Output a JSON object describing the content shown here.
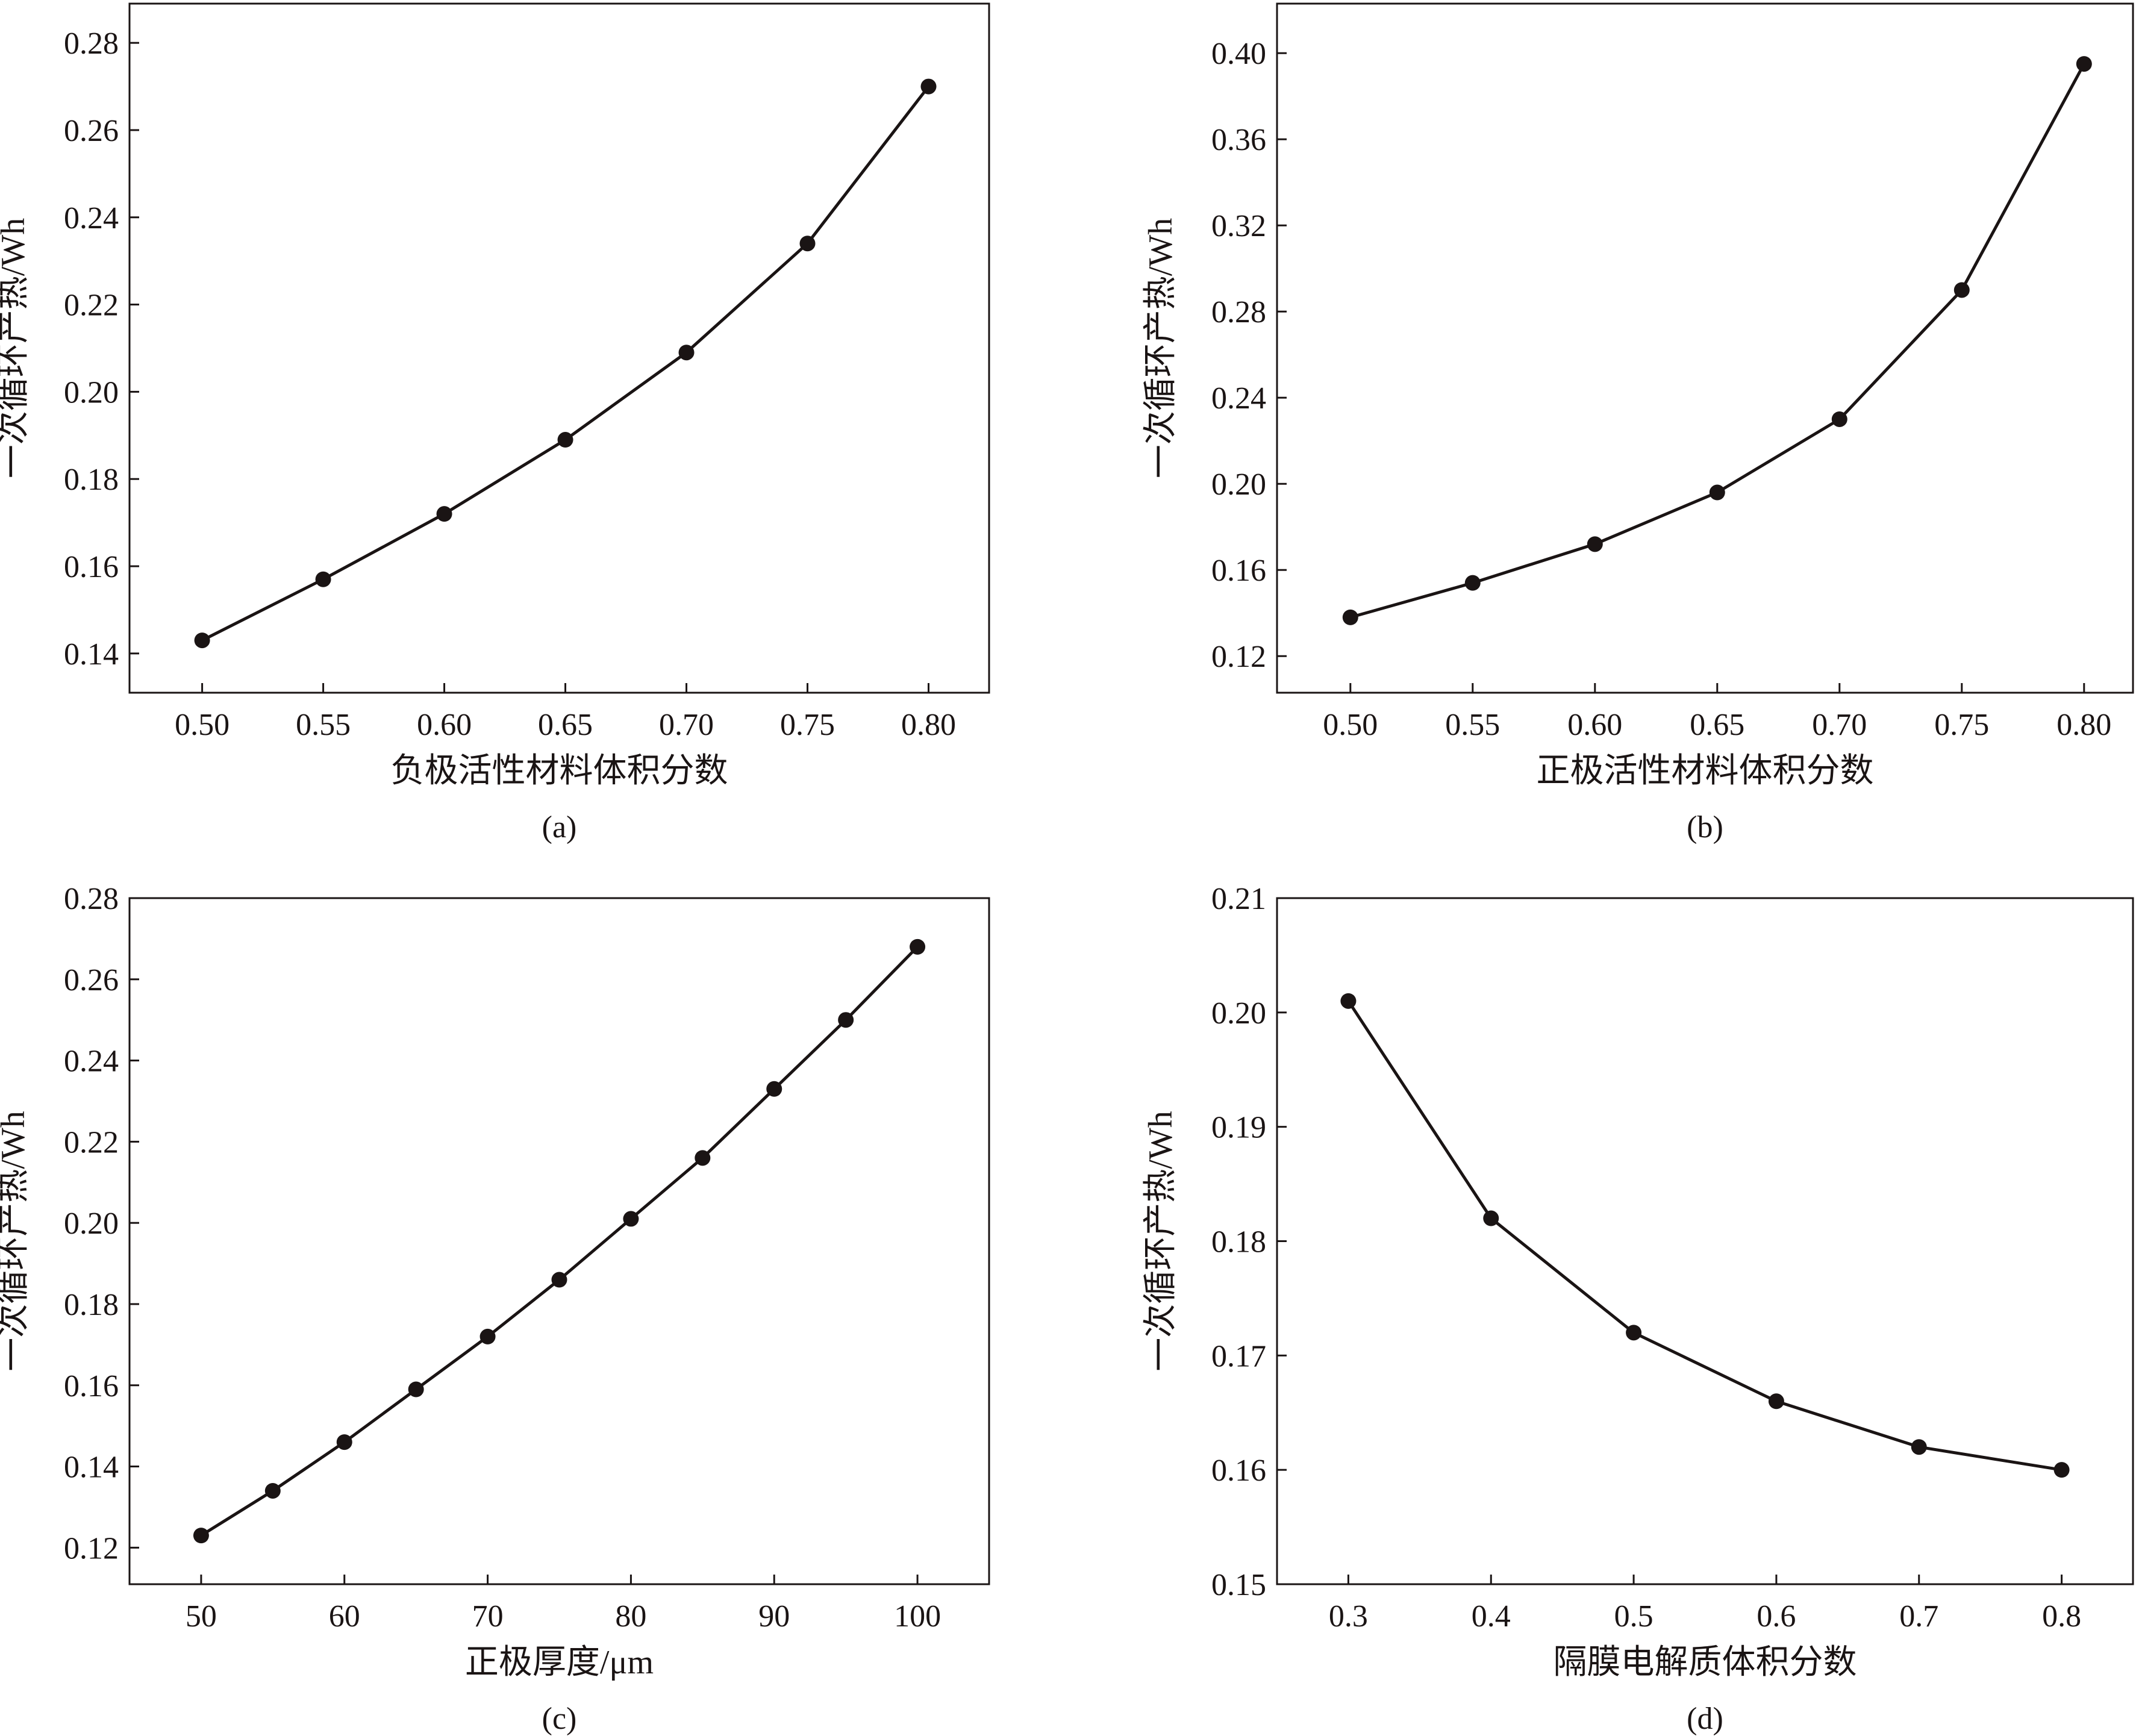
{
  "chart_data": [
    {
      "panel": "(a)",
      "type": "line",
      "xlabel": "负极活性材料体积分数",
      "ylabel": "一次循环产热/Wh",
      "x": [
        0.5,
        0.55,
        0.6,
        0.65,
        0.7,
        0.75,
        0.8
      ],
      "series": [
        {
          "values": [
            0.143,
            0.157,
            0.172,
            0.189,
            0.209,
            0.234,
            0.27
          ]
        }
      ],
      "xlim": [
        0.47,
        0.825
      ],
      "ylim": [
        0.131,
        0.289
      ],
      "xticks": [
        0.5,
        0.55,
        0.6,
        0.65,
        0.7,
        0.75,
        0.8
      ],
      "yticks": [
        0.14,
        0.16,
        0.18,
        0.2,
        0.22,
        0.24,
        0.26,
        0.28
      ],
      "xtick_labels": [
        "0.50",
        "0.55",
        "0.60",
        "0.65",
        "0.70",
        "0.75",
        "0.80"
      ],
      "ytick_labels": [
        "0.14",
        "0.16",
        "0.18",
        "0.20",
        "0.22",
        "0.24",
        "0.26",
        "0.28"
      ],
      "grid": false
    },
    {
      "panel": "(b)",
      "type": "line",
      "xlabel": "正极活性材料体积分数",
      "ylabel": "一次循环产热/Wh",
      "x": [
        0.5,
        0.55,
        0.6,
        0.65,
        0.7,
        0.75,
        0.8
      ],
      "series": [
        {
          "values": [
            0.138,
            0.154,
            0.172,
            0.196,
            0.23,
            0.29,
            0.395
          ]
        }
      ],
      "xlim": [
        0.47,
        0.82
      ],
      "ylim": [
        0.103,
        0.423
      ],
      "xticks": [
        0.5,
        0.55,
        0.6,
        0.65,
        0.7,
        0.75,
        0.8
      ],
      "yticks": [
        0.12,
        0.16,
        0.2,
        0.24,
        0.28,
        0.32,
        0.36,
        0.4
      ],
      "xtick_labels": [
        "0.50",
        "0.55",
        "0.60",
        "0.65",
        "0.70",
        "0.75",
        "0.80"
      ],
      "ytick_labels": [
        "0.12",
        "0.16",
        "0.20",
        "0.24",
        "0.28",
        "0.32",
        "0.36",
        "0.40"
      ],
      "grid": false
    },
    {
      "panel": "(c)",
      "type": "line",
      "xlabel": "正极厚度/μm",
      "ylabel": "一次循环产热/Wh",
      "x": [
        50,
        55,
        60,
        65,
        70,
        75,
        80,
        85,
        90,
        95,
        100
      ],
      "series": [
        {
          "values": [
            0.123,
            0.134,
            0.146,
            0.159,
            0.172,
            0.186,
            0.201,
            0.216,
            0.233,
            0.25,
            0.268
          ]
        }
      ],
      "xlim": [
        45,
        105
      ],
      "ylim": [
        0.111,
        0.28
      ],
      "xticks": [
        50,
        60,
        70,
        80,
        90,
        100
      ],
      "yticks": [
        0.12,
        0.14,
        0.16,
        0.18,
        0.2,
        0.22,
        0.24,
        0.26,
        0.28
      ],
      "xtick_labels": [
        "50",
        "60",
        "70",
        "80",
        "90",
        "100"
      ],
      "ytick_labels": [
        "0.12",
        "0.14",
        "0.16",
        "0.18",
        "0.20",
        "0.22",
        "0.24",
        "0.26",
        "0.28"
      ],
      "grid": false
    },
    {
      "panel": "(d)",
      "type": "line",
      "xlabel": "隔膜电解质体积分数",
      "ylabel": "一次循环产热/Wh",
      "x": [
        0.3,
        0.4,
        0.5,
        0.6,
        0.7,
        0.8
      ],
      "series": [
        {
          "values": [
            0.201,
            0.182,
            0.172,
            0.166,
            0.162,
            0.16
          ]
        }
      ],
      "xlim": [
        0.25,
        0.85
      ],
      "ylim": [
        0.15,
        0.21
      ],
      "xticks": [
        0.3,
        0.4,
        0.5,
        0.6,
        0.7,
        0.8
      ],
      "yticks": [
        0.15,
        0.16,
        0.17,
        0.18,
        0.19,
        0.2,
        0.21
      ],
      "xtick_labels": [
        "0.3",
        "0.4",
        "0.5",
        "0.6",
        "0.7",
        "0.8"
      ],
      "ytick_labels": [
        "0.15",
        "0.16",
        "0.17",
        "0.18",
        "0.19",
        "0.20",
        "0.21"
      ],
      "grid": false
    }
  ]
}
